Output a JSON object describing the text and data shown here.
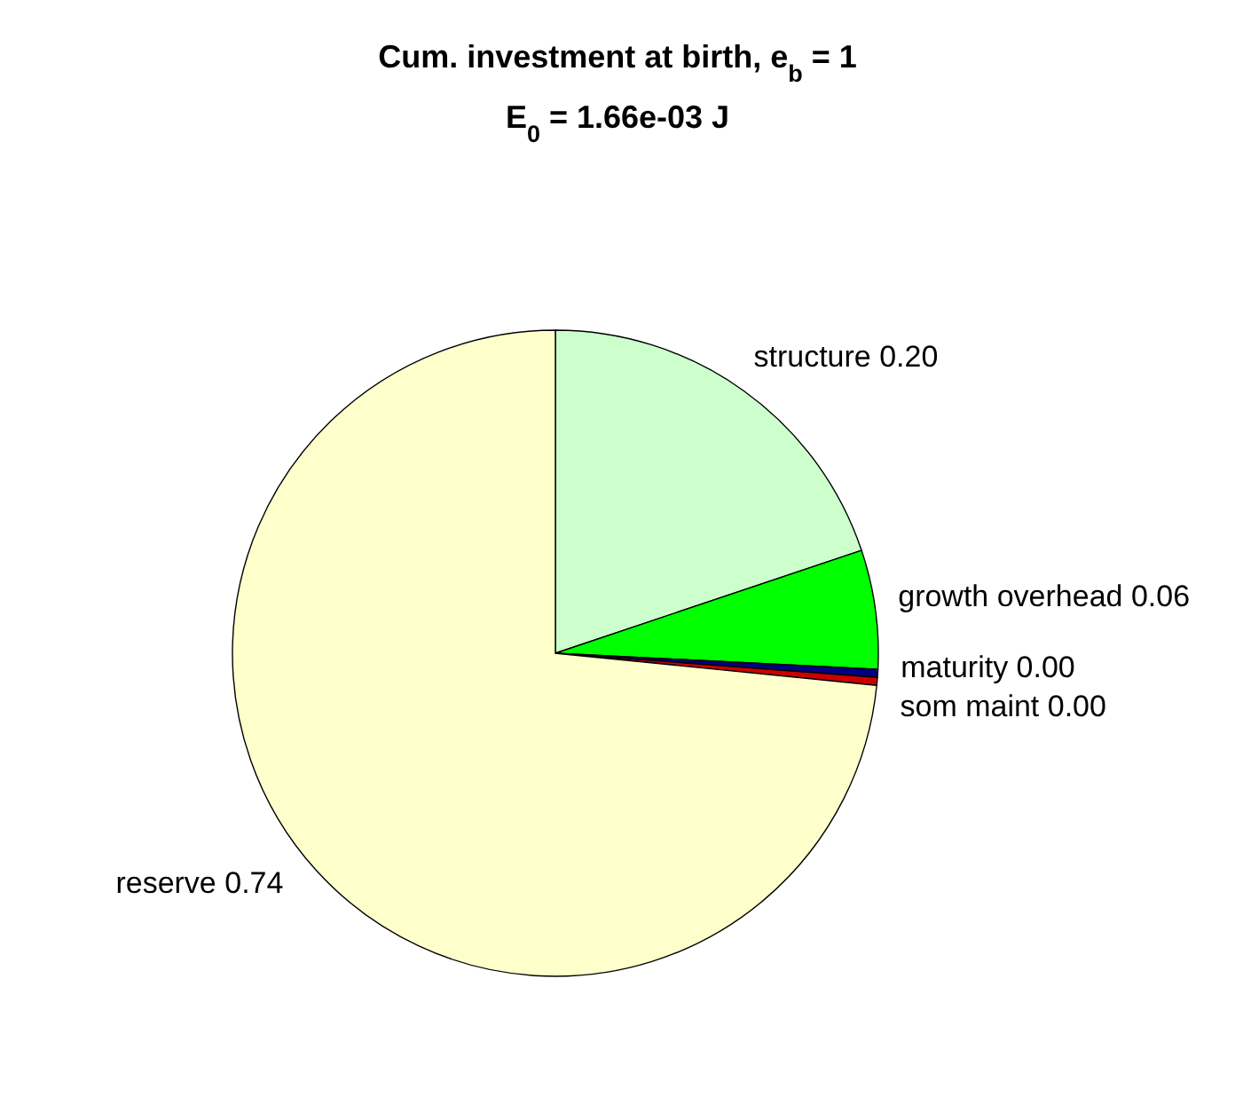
{
  "chart_data": {
    "type": "pie",
    "title": "Cum. investment at birth, e$_{b}$ = 1",
    "subtitle": "E$_{0}$ = 1.66e-03 J",
    "categories": [
      "structure",
      "growth overhead",
      "maturity",
      "som maint",
      "reserve"
    ],
    "values": [
      0.2,
      0.06,
      0.004,
      0.004,
      0.74
    ],
    "value_labels": [
      "0.20",
      "0.06",
      "0.00",
      "0.00",
      "0.74"
    ],
    "colors": [
      "#ccffcc",
      "#00ff00",
      "#000080",
      "#cc0000",
      "#ffffcc"
    ]
  }
}
